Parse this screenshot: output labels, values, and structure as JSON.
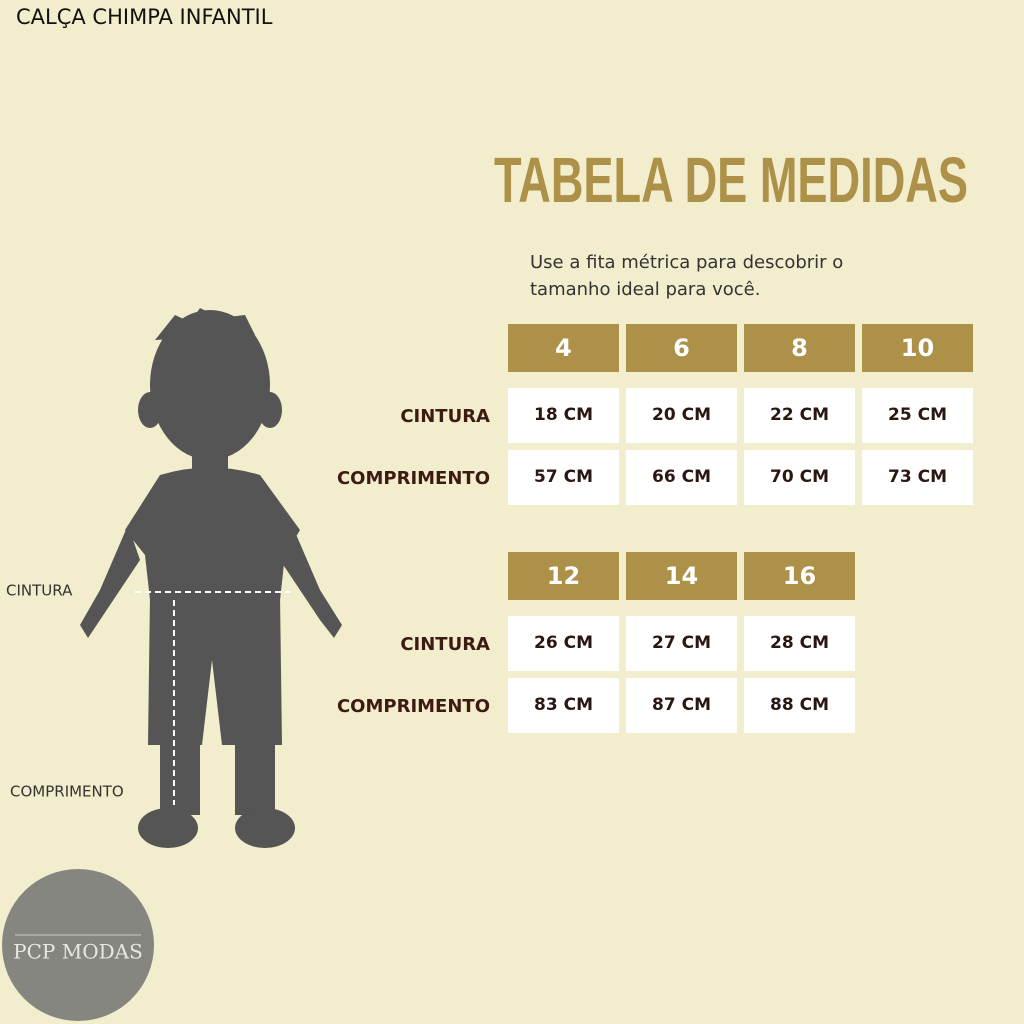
{
  "product_title": "CALÇA CHIMPA INFANTIL",
  "heading": "TABELA DE MEDIDAS",
  "subtitle": [
    "Use a fita métrica para descobrir o",
    "tamanho ideal para você."
  ],
  "tables": [
    {
      "sizes": [
        "4",
        "6",
        "8",
        "10"
      ],
      "rows": [
        {
          "label": "CINTURA",
          "cells": [
            "18 CM",
            "20 CM",
            "22 CM",
            "25 CM"
          ]
        },
        {
          "label": "COMPRIMENTO",
          "cells": [
            "57 CM",
            "66 CM",
            "70 CM",
            "73 CM"
          ]
        }
      ]
    },
    {
      "sizes": [
        "12",
        "14",
        "16"
      ],
      "rows": [
        {
          "label": "CINTURA",
          "cells": [
            "26 CM",
            "27 CM",
            "28 CM"
          ]
        },
        {
          "label": "COMPRIMENTO",
          "cells": [
            "83 CM",
            "87 CM",
            "88 CM"
          ]
        }
      ]
    }
  ],
  "figure": {
    "waist_label": "CINTURA",
    "length_label": "COMPRIMENTO"
  },
  "logo": "PCP MODAS"
}
